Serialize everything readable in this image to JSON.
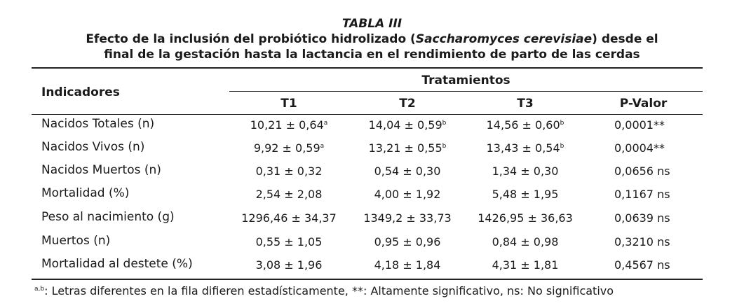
{
  "caption": {
    "label": "TABLA III",
    "line1_pre": "Efecto de la inclusión del probiótico hidrolizado (",
    "line1_italic": "Saccharomyces cerevisiae",
    "line1_post": ") desde el",
    "line2": "final de la gestación hasta la lactancia en el rendimiento de parto de las cerdas"
  },
  "header": {
    "indicadores": "Indicadores",
    "tratamientos": "Tratamientos",
    "columns": [
      "T1",
      "T2",
      "T3",
      "P-Valor"
    ]
  },
  "rows": [
    {
      "indicador": "Nacidos Totales (n)",
      "t1": "10,21 ± 0,64",
      "t1_sup": "a",
      "t2": "14,04 ± 0,59",
      "t2_sup": "b",
      "t3": "14,56 ± 0,60",
      "t3_sup": "b",
      "p": "0,0001**"
    },
    {
      "indicador": "Nacidos Vivos (n)",
      "t1": "9,92 ± 0,59",
      "t1_sup": "a",
      "t2": "13,21 ± 0,55",
      "t2_sup": "b",
      "t3": "13,43 ± 0,54",
      "t3_sup": "b",
      "p": "0,0004**"
    },
    {
      "indicador": "Nacidos Muertos (n)",
      "t1": "0,31 ± 0,32",
      "t1_sup": "",
      "t2": "0,54 ± 0,30",
      "t2_sup": "",
      "t3": "1,34 ± 0,30",
      "t3_sup": "",
      "p": "0,0656 ns"
    },
    {
      "indicador": "Mortalidad (%)",
      "t1": "2,54 ± 2,08",
      "t1_sup": "",
      "t2": "4,00 ± 1,92",
      "t2_sup": "",
      "t3": "5,48 ± 1,95",
      "t3_sup": "",
      "p": "0,1167 ns"
    },
    {
      "indicador": "Peso al nacimiento (g)",
      "t1": "1296,46 ± 34,37",
      "t1_sup": "",
      "t2": "1349,2 ± 33,73",
      "t2_sup": "",
      "t3": "1426,95 ± 36,63",
      "t3_sup": "",
      "p": "0,0639 ns"
    },
    {
      "indicador": "Muertos (n)",
      "t1": "0,55 ± 1,05",
      "t1_sup": "",
      "t2": "0,95 ± 0,96",
      "t2_sup": "",
      "t3": "0,84 ± 0,98",
      "t3_sup": "",
      "p": "0,3210 ns"
    },
    {
      "indicador": "Mortalidad al destete (%)",
      "t1": "3,08 ± 1,96",
      "t1_sup": "",
      "t2": "4,18 ± 1,84",
      "t2_sup": "",
      "t3": "4,31 ± 1,81",
      "t3_sup": "",
      "p": "0,4567 ns"
    }
  ],
  "footnote": {
    "sup": "a,b",
    "text": ": Letras diferentes en la fila difieren estadísticamente, **: Altamente significativo, ns: No significativo"
  }
}
